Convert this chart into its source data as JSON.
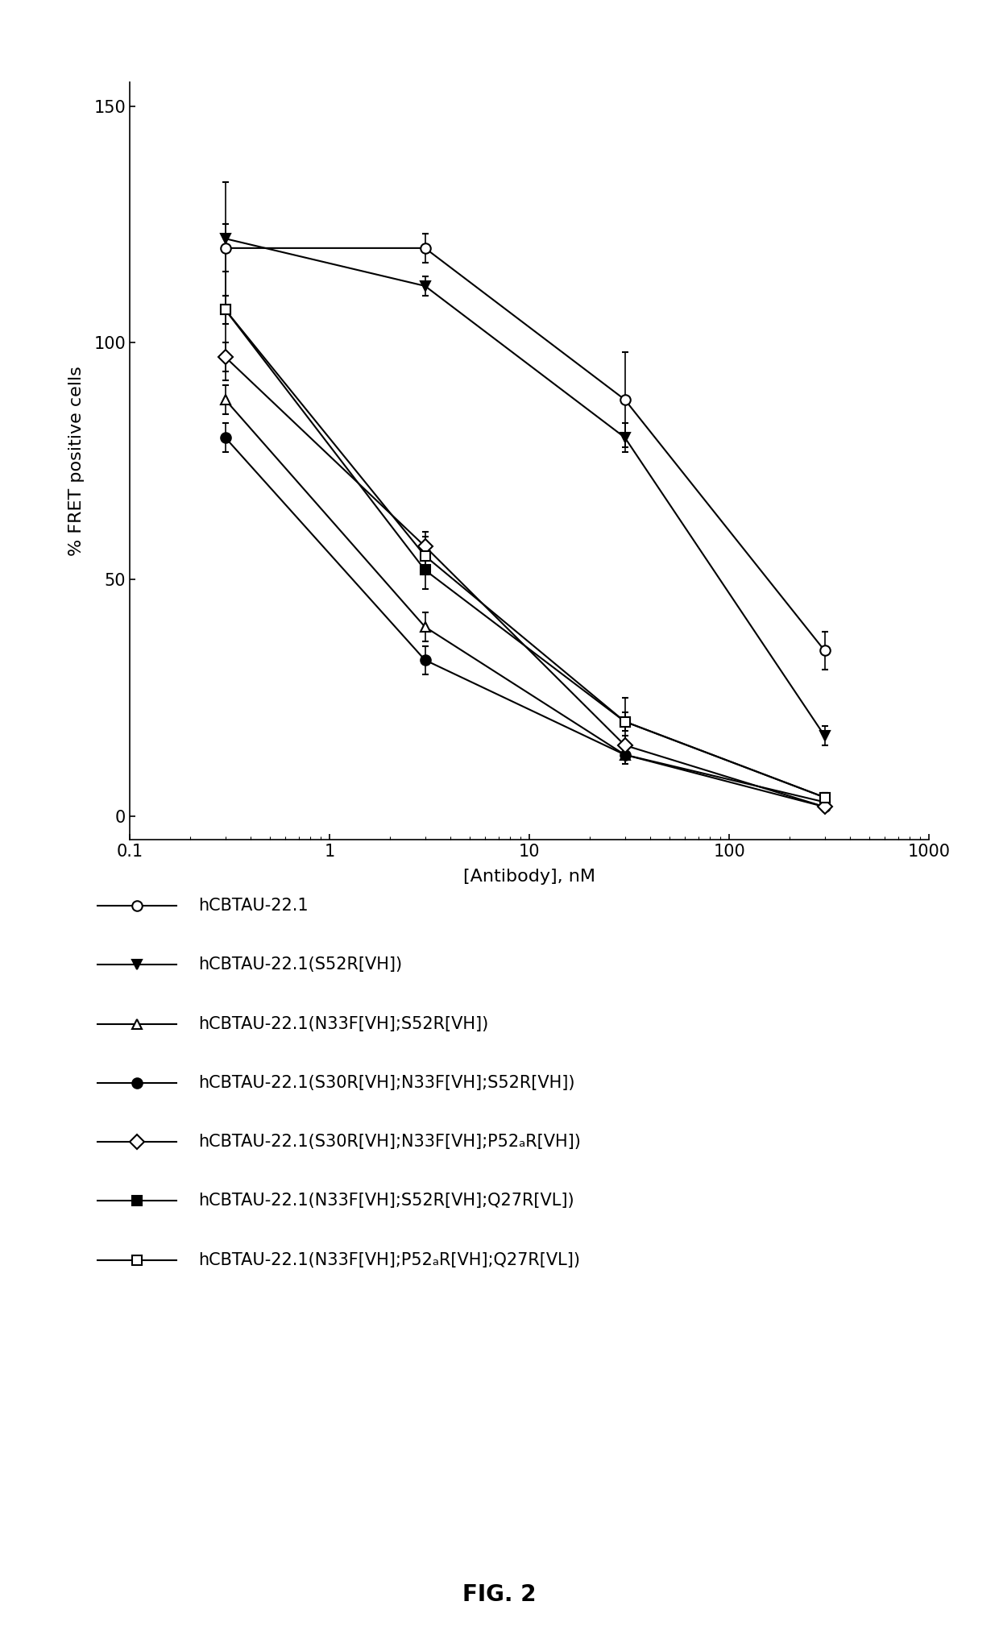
{
  "series": [
    {
      "label": "hCBTAU-22.1",
      "x": [
        0.3,
        3.0,
        30.0,
        300.0
      ],
      "y": [
        120.0,
        120.0,
        88.0,
        35.0
      ],
      "yerr": [
        5.0,
        3.0,
        10.0,
        4.0
      ],
      "marker": "o",
      "fillstyle": "none"
    },
    {
      "label": "hCBTAU-22.1(S52R[VH])",
      "x": [
        0.3,
        3.0,
        30.0,
        300.0
      ],
      "y": [
        122.0,
        112.0,
        80.0,
        17.0
      ],
      "yerr": [
        12.0,
        2.0,
        3.0,
        2.0
      ],
      "marker": "v",
      "fillstyle": "full"
    },
    {
      "label": "hCBTAU-22.1(N33F[VH];S52R[VH])",
      "x": [
        0.3,
        3.0,
        30.0,
        300.0
      ],
      "y": [
        88.0,
        40.0,
        13.0,
        3.0
      ],
      "yerr": [
        3.0,
        3.0,
        2.0,
        1.0
      ],
      "marker": "^",
      "fillstyle": "none"
    },
    {
      "label": "hCBTAU-22.1(S30R[VH];N33F[VH];S52R[VH])",
      "x": [
        0.3,
        3.0,
        30.0,
        300.0
      ],
      "y": [
        80.0,
        33.0,
        13.0,
        2.0
      ],
      "yerr": [
        3.0,
        3.0,
        2.0,
        1.0
      ],
      "marker": "o",
      "fillstyle": "full"
    },
    {
      "label": "hCBTAU-22.1(S30R[VH];N33F[VH];P52ₐR[VH])",
      "x": [
        0.3,
        3.0,
        30.0,
        300.0
      ],
      "y": [
        97.0,
        57.0,
        15.0,
        2.0
      ],
      "yerr": [
        3.0,
        3.0,
        2.0,
        1.0
      ],
      "marker": "D",
      "fillstyle": "none"
    },
    {
      "label": "hCBTAU-22.1(N33F[VH];S52R[VH];Q27R[VL])",
      "x": [
        0.3,
        3.0,
        30.0,
        300.0
      ],
      "y": [
        107.0,
        52.0,
        20.0,
        4.0
      ],
      "yerr": [
        15.0,
        4.0,
        5.0,
        1.0
      ],
      "marker": "s",
      "fillstyle": "full"
    },
    {
      "label": "hCBTAU-22.1(N33F[VH];P52ₐR[VH];Q27R[VL])",
      "x": [
        0.3,
        3.0,
        30.0,
        300.0
      ],
      "y": [
        107.0,
        55.0,
        20.0,
        4.0
      ],
      "yerr": [
        3.0,
        4.0,
        2.0,
        1.0
      ],
      "marker": "s",
      "fillstyle": "none"
    }
  ],
  "xlabel": "[Antibody], nM",
  "ylabel": "% FRET positive cells",
  "ylim": [
    -5,
    155
  ],
  "yticks": [
    0,
    50,
    100,
    150
  ],
  "xlim": [
    0.1,
    1000
  ],
  "figure_caption": "FIG. 2",
  "legend_entries": [
    {
      "marker": "o",
      "fillstyle": "none",
      "label": "hCBTAU-22.1"
    },
    {
      "marker": "v",
      "fillstyle": "full",
      "label": "hCBTAU-22.1(S52R[VH])"
    },
    {
      "marker": "^",
      "fillstyle": "none",
      "label": "hCBTAU-22.1(N33F[VH];S52R[VH])"
    },
    {
      "marker": "o",
      "fillstyle": "full",
      "label": "hCBTAU-22.1(S30R[VH];N33F[VH];S52R[VH])"
    },
    {
      "marker": "D",
      "fillstyle": "none",
      "label": "hCBTAU-22.1(S30R[VH];N33F[VH];P52ₐR[VH])"
    },
    {
      "marker": "s",
      "fillstyle": "full",
      "label": "hCBTAU-22.1(N33F[VH];S52R[VH];Q27R[VL])"
    },
    {
      "marker": "s",
      "fillstyle": "none",
      "label": "hCBTAU-22.1(N33F[VH];P52ₐR[VH];Q27R[VL])"
    }
  ]
}
